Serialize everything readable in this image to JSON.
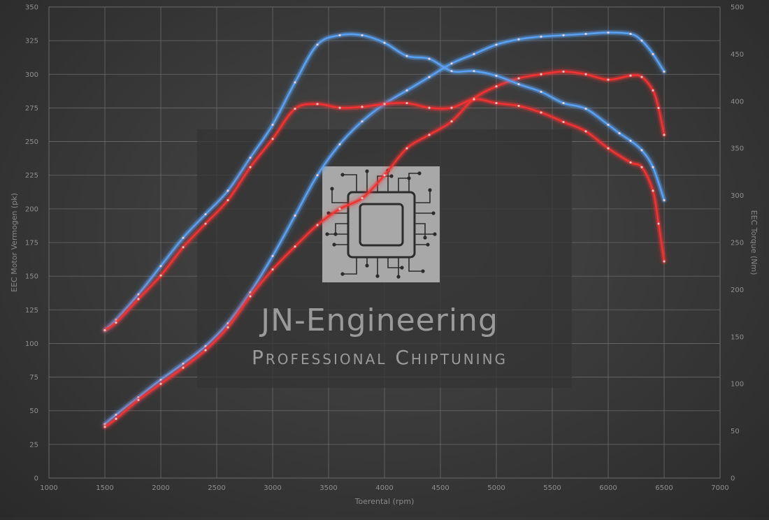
{
  "chart_data": {
    "type": "line",
    "xlabel": "Toerental (rpm)",
    "ylabel_left": "EEC Motor Vermogen (pk)",
    "ylabel_right": "EEC Torque (Nm)",
    "xlim": [
      1000,
      7000
    ],
    "ylim_left": [
      0,
      350
    ],
    "ylim_right": [
      0,
      500
    ],
    "x_ticks": [
      1000,
      1500,
      2000,
      2500,
      3000,
      3500,
      4000,
      4500,
      5000,
      5500,
      6000,
      6500,
      7000
    ],
    "y_left_ticks": [
      0,
      25,
      50,
      75,
      100,
      125,
      150,
      175,
      200,
      225,
      250,
      275,
      300,
      325,
      350
    ],
    "y_right_ticks": [
      0,
      50,
      100,
      150,
      200,
      250,
      300,
      350,
      400,
      450,
      500
    ],
    "grid": true,
    "colors": {
      "tuned": "#5aa0f0",
      "stock": "#f03232"
    },
    "series": [
      {
        "role": "tuned-power",
        "axis": "left",
        "color": "#5aa0f0",
        "x": [
          1500,
          1600,
          1800,
          2000,
          2200,
          2400,
          2600,
          2800,
          3000,
          3200,
          3400,
          3600,
          3800,
          4000,
          4200,
          4400,
          4600,
          4800,
          5000,
          5200,
          5400,
          5600,
          5800,
          6000,
          6200,
          6300,
          6400,
          6500
        ],
        "y": [
          40,
          47,
          60,
          73,
          85,
          98,
          115,
          138,
          165,
          195,
          225,
          248,
          265,
          278,
          288,
          298,
          308,
          315,
          322,
          326,
          328,
          329,
          330,
          331,
          330,
          325,
          315,
          302
        ]
      },
      {
        "role": "stock-power",
        "axis": "left",
        "color": "#f03232",
        "x": [
          1500,
          1600,
          1800,
          2000,
          2200,
          2400,
          2600,
          2800,
          3000,
          3200,
          3400,
          3600,
          3800,
          4000,
          4200,
          4400,
          4600,
          4800,
          5000,
          5200,
          5400,
          5600,
          5800,
          6000,
          6200,
          6300,
          6400,
          6450,
          6500
        ],
        "y": [
          38,
          44,
          58,
          70,
          82,
          95,
          112,
          135,
          155,
          172,
          188,
          200,
          208,
          225,
          245,
          255,
          265,
          282,
          291,
          297,
          300,
          302,
          300,
          296,
          299,
          298,
          288,
          275,
          255
        ]
      },
      {
        "role": "tuned-torque",
        "axis": "right",
        "color": "#5aa0f0",
        "x": [
          1500,
          1600,
          1800,
          2000,
          2200,
          2400,
          2600,
          2800,
          3000,
          3200,
          3400,
          3600,
          3800,
          4000,
          4200,
          4400,
          4600,
          4800,
          5000,
          5200,
          5400,
          5600,
          5800,
          6000,
          6100,
          6200,
          6300,
          6400,
          6500
        ],
        "y": [
          157,
          168,
          195,
          225,
          255,
          280,
          305,
          340,
          375,
          420,
          460,
          470,
          470,
          462,
          448,
          445,
          432,
          432,
          427,
          418,
          410,
          398,
          392,
          375,
          366,
          358,
          348,
          330,
          295
        ]
      },
      {
        "role": "stock-torque",
        "axis": "right",
        "color": "#f03232",
        "x": [
          1500,
          1600,
          1800,
          2000,
          2200,
          2400,
          2600,
          2800,
          3000,
          3200,
          3400,
          3600,
          3800,
          4000,
          4200,
          4400,
          4600,
          4800,
          5000,
          5200,
          5400,
          5600,
          5800,
          6000,
          6200,
          6300,
          6400,
          6450,
          6500
        ],
        "y": [
          157,
          165,
          190,
          215,
          245,
          270,
          295,
          330,
          360,
          392,
          397,
          393,
          394,
          397,
          398,
          393,
          393,
          402,
          398,
          395,
          388,
          378,
          368,
          350,
          335,
          330,
          305,
          270,
          230
        ]
      }
    ]
  },
  "watermark": {
    "title": "JN-Engineering",
    "subtitle": "Professional Chiptuning",
    "logo_icon": "microchip-icon"
  }
}
